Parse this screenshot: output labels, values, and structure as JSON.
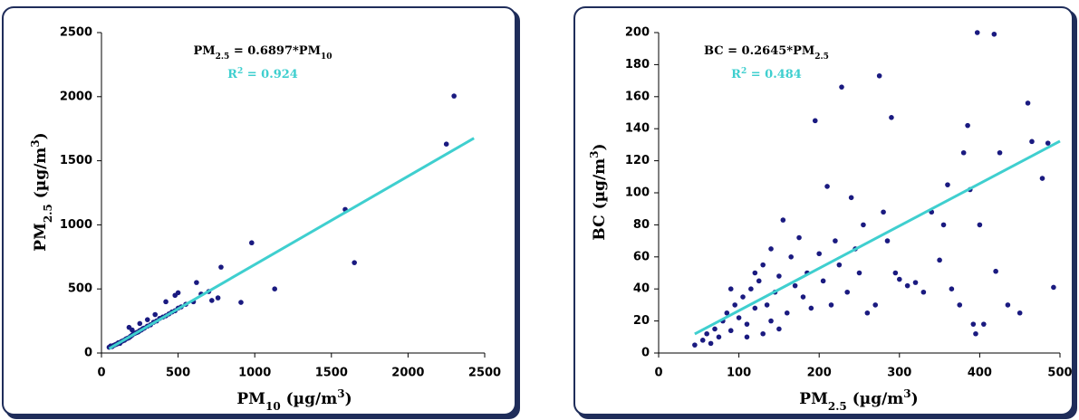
{
  "chart_data": [
    {
      "type": "scatter",
      "color": "#1a1a80",
      "xlim": [
        0,
        2500
      ],
      "ylim": [
        0,
        2500
      ],
      "xticks": [
        0,
        500,
        1000,
        1500,
        2000,
        2500
      ],
      "yticks": [
        0,
        500,
        1000,
        1500,
        2000,
        2500
      ],
      "xlabel": [
        {
          "text": "PM"
        },
        {
          "text": "10",
          "baseline": "sub"
        },
        {
          "text": " (µg/m"
        },
        {
          "text": "3",
          "baseline": "super"
        },
        {
          "text": ")"
        }
      ],
      "ylabel": [
        {
          "text": "PM"
        },
        {
          "text": "2.5",
          "baseline": "sub"
        },
        {
          "text": " (µg/m"
        },
        {
          "text": "3",
          "baseline": "super"
        },
        {
          "text": ")"
        }
      ],
      "equation": [
        {
          "text": "PM"
        },
        {
          "text": "2.5",
          "baseline": "sub"
        },
        {
          "text": " = 0.6897*PM"
        },
        {
          "text": "10",
          "baseline": "sub"
        }
      ],
      "r2_label": [
        {
          "text": "R"
        },
        {
          "text": "2",
          "baseline": "super"
        },
        {
          "text": " = 0.924"
        }
      ],
      "trendline": {
        "slope": 0.6897,
        "x": [
          50,
          2430
        ],
        "color": "#3fcfcf"
      },
      "x": [
        50,
        60,
        70,
        80,
        90,
        100,
        110,
        120,
        130,
        140,
        150,
        160,
        170,
        180,
        190,
        200,
        210,
        220,
        230,
        240,
        250,
        260,
        270,
        280,
        300,
        320,
        340,
        360,
        380,
        400,
        420,
        440,
        460,
        480,
        500,
        520,
        550,
        300,
        350,
        420,
        480,
        500,
        250,
        200,
        180,
        600,
        620,
        650,
        700,
        720,
        760,
        780,
        910,
        980,
        1130,
        1590,
        1650,
        2250,
        2300
      ],
      "values": [
        45,
        55,
        50,
        60,
        65,
        70,
        80,
        75,
        90,
        95,
        100,
        110,
        115,
        120,
        130,
        140,
        150,
        155,
        160,
        165,
        175,
        180,
        190,
        195,
        210,
        220,
        240,
        250,
        270,
        280,
        290,
        305,
        320,
        330,
        350,
        360,
        380,
        260,
        300,
        400,
        450,
        470,
        230,
        180,
        200,
        400,
        550,
        460,
        480,
        410,
        430,
        670,
        395,
        860,
        500,
        1120,
        705,
        1630,
        2005
      ]
    },
    {
      "type": "scatter",
      "color": "#1a1a80",
      "xlim": [
        0,
        500
      ],
      "ylim": [
        0,
        200
      ],
      "xticks": [
        0,
        100,
        200,
        300,
        400,
        500
      ],
      "yticks": [
        0,
        20,
        40,
        60,
        80,
        100,
        120,
        140,
        160,
        180,
        200
      ],
      "xlabel": [
        {
          "text": "PM"
        },
        {
          "text": "2.5",
          "baseline": "sub"
        },
        {
          "text": " (µg/m"
        },
        {
          "text": "3",
          "baseline": "super"
        },
        {
          "text": ")"
        }
      ],
      "ylabel": [
        {
          "text": "BC (µg/m"
        },
        {
          "text": "3",
          "baseline": "super"
        },
        {
          "text": ")"
        }
      ],
      "equation": [
        {
          "text": "BC = 0.2645*PM"
        },
        {
          "text": "2.5",
          "baseline": "sub"
        }
      ],
      "r2_label": [
        {
          "text": "R"
        },
        {
          "text": "2",
          "baseline": "super"
        },
        {
          "text": " = 0.484"
        }
      ],
      "trendline": {
        "slope": 0.2645,
        "x": [
          45,
          500
        ],
        "color": "#3fcfcf"
      },
      "x": [
        45,
        55,
        60,
        65,
        70,
        75,
        80,
        85,
        90,
        95,
        100,
        105,
        110,
        115,
        120,
        125,
        130,
        135,
        140,
        145,
        150,
        155,
        160,
        165,
        170,
        175,
        180,
        185,
        190,
        195,
        200,
        205,
        210,
        215,
        220,
        225,
        228,
        235,
        240,
        245,
        250,
        255,
        260,
        270,
        275,
        280,
        285,
        290,
        295,
        300,
        310,
        320,
        330,
        340,
        350,
        355,
        360,
        365,
        375,
        380,
        385,
        388,
        392,
        395,
        397,
        400,
        405,
        418,
        420,
        425,
        435,
        450,
        460,
        465,
        478,
        485,
        492,
        110,
        130,
        150,
        120,
        90,
        140
      ],
      "values": [
        5,
        8,
        12,
        6,
        15,
        10,
        20,
        25,
        14,
        30,
        22,
        35,
        18,
        40,
        28,
        45,
        55,
        30,
        20,
        38,
        48,
        83,
        25,
        60,
        42,
        72,
        35,
        50,
        28,
        145,
        62,
        45,
        104,
        30,
        70,
        55,
        166,
        38,
        97,
        65,
        50,
        80,
        25,
        30,
        173,
        88,
        70,
        147,
        50,
        46,
        42,
        44,
        38,
        88,
        58,
        80,
        105,
        40,
        30,
        125,
        142,
        102,
        18,
        12,
        200,
        80,
        18,
        199,
        51,
        125,
        30,
        25,
        156,
        132,
        109,
        131,
        41,
        10,
        12,
        15,
        50,
        40,
        65
      ]
    }
  ]
}
